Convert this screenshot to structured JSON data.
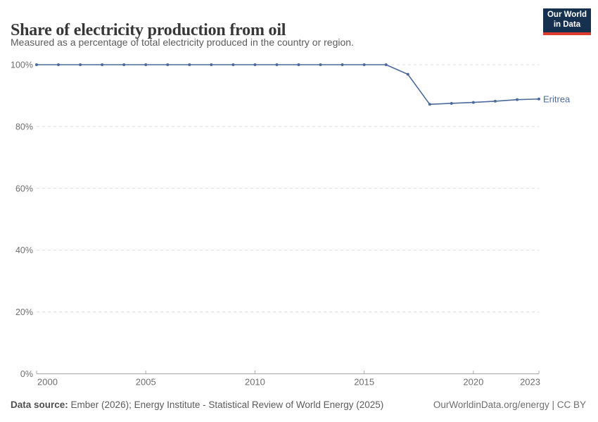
{
  "header": {
    "title": "Share of electricity production from oil",
    "subtitle": "Measured as a percentage of total electricity produced in the country or region.",
    "logo": {
      "line1": "Our World",
      "line2": "in Data"
    }
  },
  "chart_data": {
    "type": "line",
    "title": "Share of electricity production from oil",
    "x": [
      2000,
      2001,
      2002,
      2003,
      2004,
      2005,
      2006,
      2007,
      2008,
      2009,
      2010,
      2011,
      2012,
      2013,
      2014,
      2015,
      2016,
      2017,
      2018,
      2019,
      2020,
      2021,
      2022,
      2023
    ],
    "series": [
      {
        "name": "Eritrea",
        "color": "#4c6a9c",
        "values": [
          100,
          100,
          100,
          100,
          100,
          100,
          100,
          100,
          100,
          100,
          100,
          100,
          100,
          100,
          100,
          100,
          100,
          96.9,
          87.2,
          87.5,
          87.8,
          88.2,
          88.7,
          88.9
        ]
      }
    ],
    "xlabel": "",
    "ylabel": "",
    "ylim": [
      0,
      100
    ],
    "xlim": [
      2000,
      2023
    ],
    "yticks": [
      0,
      20,
      40,
      60,
      80,
      100
    ],
    "ytick_labels": [
      "0%",
      "20%",
      "40%",
      "60%",
      "80%",
      "100%"
    ],
    "xticks": [
      2000,
      2005,
      2010,
      2015,
      2020,
      2023
    ],
    "xtick_labels": [
      "2000",
      "2005",
      "2010",
      "2015",
      "2020",
      "2023"
    ],
    "grid": "horizontal-dashed",
    "legend_position": "end-of-line-label",
    "end_label": "Eritrea"
  },
  "footer": {
    "source_label": "Data source:",
    "source_text": " Ember (2026); Energy Institute - Statistical Review of World Energy (2025)",
    "rights": "OurWorldinData.org/energy | CC BY"
  },
  "colors": {
    "accent_line": "#4c6a9c",
    "grid": "#dcdcdc",
    "axis": "#a8a8a8",
    "tick_text": "#6e6e6e",
    "logo_bg": "#16304f",
    "logo_red": "#dc3b2e"
  }
}
